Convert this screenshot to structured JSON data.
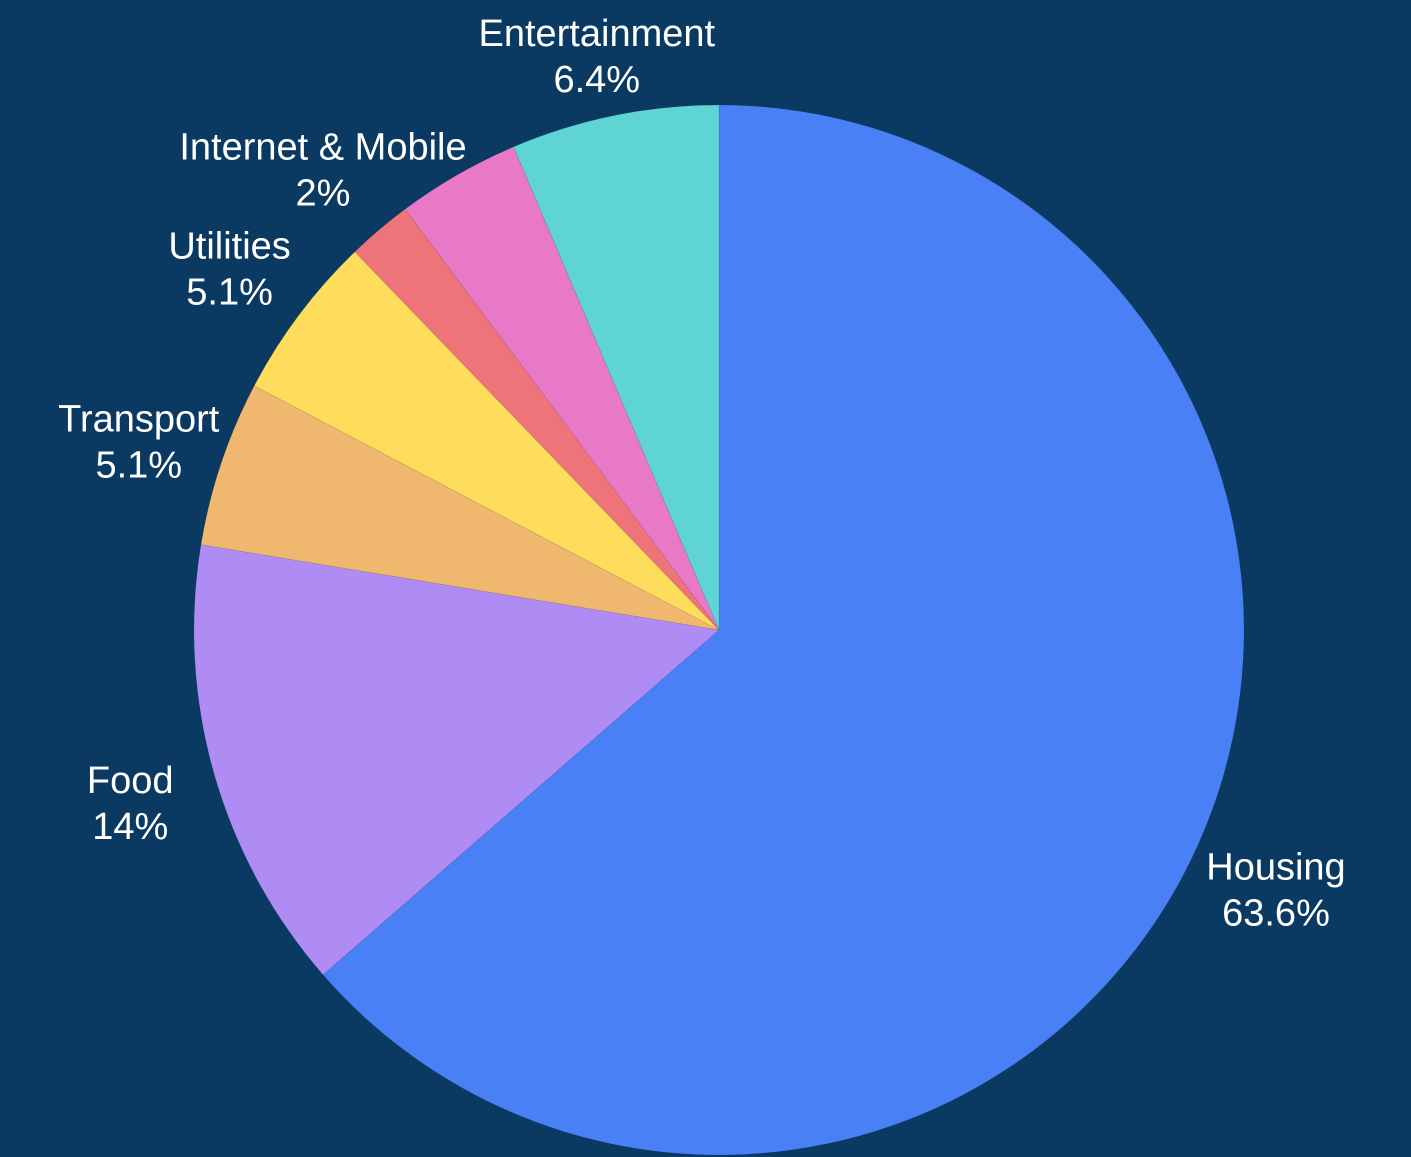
{
  "chart_data": {
    "type": "pie",
    "categories": [
      "Housing",
      "Food",
      "Transport",
      "Utilities",
      "Internet & Mobile",
      "Entertainment"
    ],
    "values": [
      63.6,
      14,
      5.1,
      5.1,
      2,
      6.4
    ],
    "value_labels": [
      "63.6%",
      "14%",
      "5.1%",
      "5.1%",
      "2%",
      "6.4%"
    ],
    "extra_slice": {
      "value": 3.8,
      "color": "#e879c6"
    },
    "colors": [
      "#4a80f5",
      "#ae8cf3",
      "#f0b86e",
      "#ffdd5c",
      "#ef7479",
      "#5ed5d3"
    ],
    "start_angle_deg": 0,
    "direction": "clockwise",
    "background": "#0a3a61",
    "label_color": "#ffffff"
  }
}
